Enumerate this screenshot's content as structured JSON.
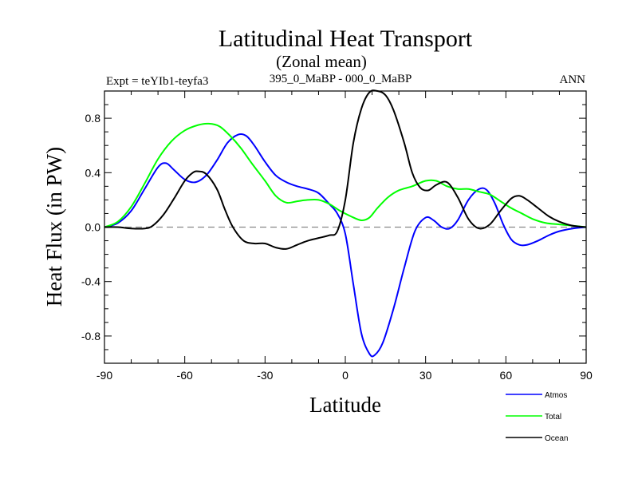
{
  "chart_data": {
    "type": "line",
    "title": "Latitudinal Heat Transport",
    "subtitle": "(Zonal mean)",
    "left_label": "Expt = teYIb1-teyfa3",
    "center_label": "395_0_MaBP - 000_0_MaBP",
    "right_label": "ANN",
    "xlabel": "Latitude",
    "ylabel": "Heat Flux (in PW)",
    "xlim": [
      -90,
      90
    ],
    "ylim": [
      -1.0,
      1.0
    ],
    "xticks": [
      -90,
      -60,
      -30,
      0,
      30,
      60,
      90
    ],
    "xtick_labels": [
      "-90",
      "-60",
      "-30",
      "0",
      "30",
      "60",
      "90"
    ],
    "yticks": [
      0.8,
      0.4,
      0.0,
      -0.4,
      -0.8
    ],
    "ytick_labels": [
      "0.8",
      "0.4",
      "0.0",
      "-0.4",
      "-0.8"
    ],
    "zero_line": "dashed",
    "legend_position": "bottom-right",
    "series": [
      {
        "name": "Atmos",
        "color": "#0000ff",
        "x": [
          -90,
          -85,
          -80,
          -75,
          -70,
          -67,
          -64,
          -60,
          -56,
          -52,
          -48,
          -44,
          -40,
          -37,
          -34,
          -30,
          -26,
          -22,
          -18,
          -14,
          -10,
          -6,
          -3,
          0,
          3,
          6,
          9,
          11,
          14,
          18,
          22,
          26,
          30,
          33,
          36,
          39,
          42,
          46,
          50,
          53,
          56,
          59,
          62,
          65,
          68,
          72,
          76,
          80,
          85,
          90
        ],
        "y": [
          0.0,
          0.03,
          0.12,
          0.28,
          0.44,
          0.47,
          0.42,
          0.35,
          0.33,
          0.38,
          0.49,
          0.62,
          0.68,
          0.67,
          0.6,
          0.48,
          0.38,
          0.33,
          0.3,
          0.28,
          0.25,
          0.17,
          0.1,
          -0.05,
          -0.42,
          -0.78,
          -0.93,
          -0.94,
          -0.85,
          -0.6,
          -0.3,
          -0.03,
          0.07,
          0.05,
          0.0,
          -0.01,
          0.05,
          0.2,
          0.28,
          0.27,
          0.17,
          0.02,
          -0.09,
          -0.13,
          -0.13,
          -0.1,
          -0.06,
          -0.03,
          -0.01,
          0.0
        ]
      },
      {
        "name": "Total",
        "color": "#00ff00",
        "x": [
          -90,
          -85,
          -80,
          -75,
          -70,
          -65,
          -60,
          -55,
          -51,
          -47,
          -43,
          -39,
          -35,
          -30,
          -26,
          -22,
          -18,
          -14,
          -10,
          -6,
          -2,
          2,
          6,
          9,
          12,
          16,
          20,
          25,
          30,
          34,
          38,
          42,
          46,
          50,
          54,
          58,
          62,
          66,
          70,
          75,
          80,
          85,
          90
        ],
        "y": [
          0.0,
          0.04,
          0.15,
          0.32,
          0.5,
          0.63,
          0.71,
          0.75,
          0.76,
          0.74,
          0.67,
          0.58,
          0.47,
          0.34,
          0.23,
          0.18,
          0.19,
          0.2,
          0.2,
          0.17,
          0.12,
          0.08,
          0.05,
          0.07,
          0.14,
          0.22,
          0.27,
          0.3,
          0.34,
          0.34,
          0.3,
          0.28,
          0.28,
          0.26,
          0.24,
          0.19,
          0.14,
          0.1,
          0.06,
          0.03,
          0.02,
          0.01,
          0.0
        ]
      },
      {
        "name": "Ocean",
        "color": "#000000",
        "x": [
          -90,
          -85,
          -80,
          -75,
          -72,
          -68,
          -64,
          -60,
          -57,
          -55,
          -52,
          -48,
          -45,
          -42,
          -38,
          -34,
          -30,
          -26,
          -22,
          -18,
          -14,
          -10,
          -6,
          -3,
          0,
          3,
          6,
          9,
          12,
          15,
          18,
          22,
          25,
          28,
          31,
          34,
          38,
          42,
          46,
          50,
          54,
          58,
          62,
          65,
          68,
          72,
          76,
          80,
          85,
          90
        ],
        "y": [
          0.0,
          0.0,
          -0.01,
          -0.01,
          0.01,
          0.09,
          0.21,
          0.34,
          0.4,
          0.41,
          0.39,
          0.28,
          0.13,
          0.0,
          -0.1,
          -0.12,
          -0.12,
          -0.15,
          -0.16,
          -0.13,
          -0.1,
          -0.08,
          -0.06,
          -0.03,
          0.2,
          0.62,
          0.87,
          0.99,
          1.0,
          0.97,
          0.86,
          0.62,
          0.4,
          0.29,
          0.27,
          0.31,
          0.33,
          0.22,
          0.06,
          -0.01,
          0.02,
          0.12,
          0.21,
          0.23,
          0.2,
          0.14,
          0.08,
          0.04,
          0.01,
          0.0
        ]
      }
    ]
  }
}
